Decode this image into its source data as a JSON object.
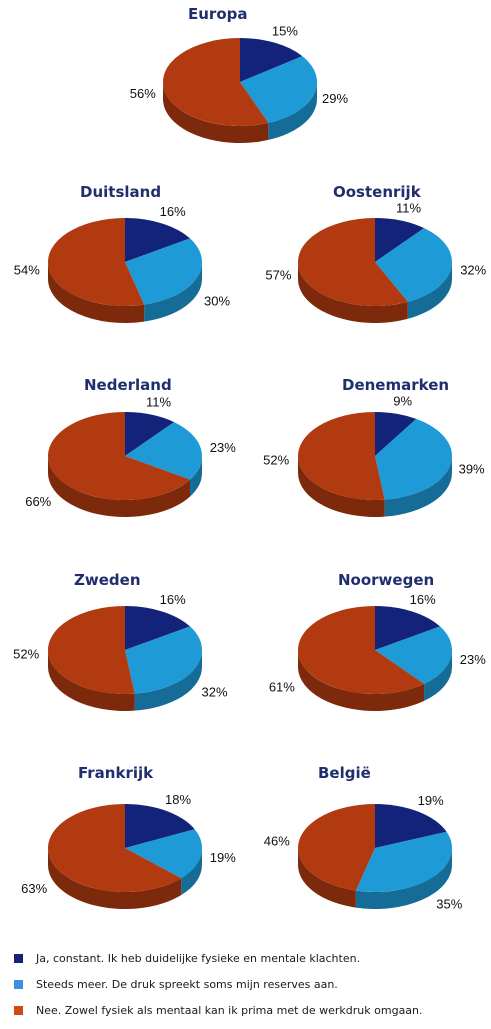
{
  "chart_data": [
    {
      "type": "pie",
      "title": "Europa",
      "categories": [
        "Ja, constant",
        "Steeds meer",
        "Nee"
      ],
      "values": [
        15,
        29,
        56
      ],
      "labels": [
        "15%",
        "29%",
        "56%"
      ]
    },
    {
      "type": "pie",
      "title": "Duitsland",
      "categories": [
        "Ja, constant",
        "Steeds meer",
        "Nee"
      ],
      "values": [
        16,
        30,
        54
      ],
      "labels": [
        "16%",
        "30%",
        "54%"
      ]
    },
    {
      "type": "pie",
      "title": "Oostenrijk",
      "categories": [
        "Ja, constant",
        "Steeds meer",
        "Nee"
      ],
      "values": [
        11,
        32,
        57
      ],
      "labels": [
        "11%",
        "32%",
        "57%"
      ]
    },
    {
      "type": "pie",
      "title": "Nederland",
      "categories": [
        "Ja, constant",
        "Steeds meer",
        "Nee"
      ],
      "values": [
        11,
        23,
        66
      ],
      "labels": [
        "11%",
        "23%",
        "66%"
      ]
    },
    {
      "type": "pie",
      "title": "Denemarken",
      "categories": [
        "Ja, constant",
        "Steeds meer",
        "Nee"
      ],
      "values": [
        9,
        39,
        52
      ],
      "labels": [
        "9%",
        "39%",
        "52%"
      ]
    },
    {
      "type": "pie",
      "title": "Zweden",
      "categories": [
        "Ja, constant",
        "Steeds meer",
        "Nee"
      ],
      "values": [
        16,
        32,
        52
      ],
      "labels": [
        "16%",
        "32%",
        "52%"
      ]
    },
    {
      "type": "pie",
      "title": "Noorwegen",
      "categories": [
        "Ja, constant",
        "Steeds meer",
        "Nee"
      ],
      "values": [
        16,
        23,
        61
      ],
      "labels": [
        "16%",
        "23%",
        "61%"
      ]
    },
    {
      "type": "pie",
      "title": "Frankrijk",
      "categories": [
        "Ja, constant",
        "Steeds meer",
        "Nee"
      ],
      "values": [
        18,
        19,
        63
      ],
      "labels": [
        "18%",
        "19%",
        "63%"
      ]
    },
    {
      "type": "pie",
      "title": "België",
      "categories": [
        "Ja, constant",
        "Steeds meer",
        "Nee"
      ],
      "values": [
        19,
        35,
        46
      ],
      "labels": [
        "19%",
        "35%",
        "46%"
      ]
    }
  ],
  "colors": {
    "ja": "#14237a",
    "steeds": "#1e9ad6",
    "nee": "#b23a10",
    "title": "#1f2f6e"
  },
  "legend": [
    {
      "label": "Ja, constant. Ik heb duidelijke fysieke en mentale klachten.",
      "color": "#14237a"
    },
    {
      "label": "Steeds meer. De druk spreekt soms mijn reserves aan.",
      "color": "#3a8fe0"
    },
    {
      "label": "Nee. Zowel fysiek als mentaal kan ik prima met de werkdruk omgaan.",
      "color": "#d34a10"
    }
  ]
}
